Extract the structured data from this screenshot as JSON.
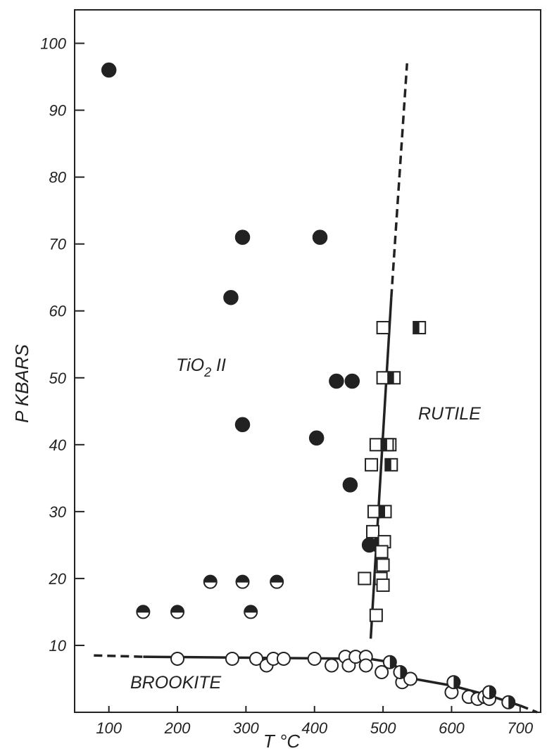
{
  "chart_data": {
    "type": "scatter",
    "xlabel": "T °C",
    "ylabel": "P KBARS",
    "xlim": [
      50,
      730
    ],
    "ylim": [
      0,
      105
    ],
    "xticks": [
      100,
      200,
      300,
      400,
      500,
      600,
      700
    ],
    "yticks": [
      10,
      20,
      30,
      40,
      50,
      60,
      70,
      80,
      90,
      100
    ],
    "regions": {
      "tio2": {
        "prefix": "TiO",
        "sub": "2",
        "suffix": " II"
      },
      "rutile": "RUTILE",
      "brookite": "BROOKITE"
    },
    "series": [
      {
        "marker": "filled-circle",
        "points": [
          [
            100,
            96
          ],
          [
            295,
            71
          ],
          [
            408,
            71
          ],
          [
            278,
            62
          ],
          [
            295,
            43
          ],
          [
            403,
            41
          ],
          [
            432,
            49.5
          ],
          [
            455,
            49.5
          ],
          [
            452,
            34
          ],
          [
            480,
            25
          ],
          [
            493,
            25
          ]
        ]
      },
      {
        "marker": "half-filled-circle-top",
        "points": [
          [
            248,
            19.5
          ],
          [
            295,
            19.5
          ],
          [
            345,
            19.5
          ],
          [
            150,
            15
          ],
          [
            200,
            15
          ],
          [
            307,
            15
          ]
        ]
      },
      {
        "marker": "open-square",
        "points": [
          [
            500,
            57.5
          ],
          [
            500,
            50
          ],
          [
            490,
            40
          ],
          [
            483,
            37
          ],
          [
            487,
            30
          ],
          [
            485,
            27
          ],
          [
            502,
            25.5
          ],
          [
            498,
            24
          ],
          [
            500,
            22
          ],
          [
            497,
            20
          ],
          [
            500,
            19
          ],
          [
            473,
            20
          ],
          [
            490,
            14.5
          ]
        ]
      },
      {
        "marker": "half-filled-square",
        "points": [
          [
            553,
            57.5
          ],
          [
            516,
            50
          ],
          [
            510,
            40
          ],
          [
            512,
            37
          ],
          [
            503,
            30
          ],
          [
            506,
            40
          ]
        ]
      },
      {
        "marker": "open-circle",
        "points": [
          [
            200,
            8
          ],
          [
            280,
            8
          ],
          [
            315,
            8
          ],
          [
            330,
            7
          ],
          [
            340,
            8
          ],
          [
            355,
            8
          ],
          [
            400,
            8
          ],
          [
            425,
            7
          ],
          [
            445,
            8.3
          ],
          [
            450,
            7
          ],
          [
            460,
            8.3
          ],
          [
            475,
            8.3
          ],
          [
            475,
            7
          ],
          [
            498,
            6
          ],
          [
            528,
            4.5
          ],
          [
            540,
            5
          ],
          [
            600,
            3
          ],
          [
            625,
            2.3
          ],
          [
            638,
            2
          ],
          [
            648,
            2.3
          ],
          [
            655,
            2
          ]
        ]
      },
      {
        "marker": "half-filled-circle-right",
        "points": [
          [
            510,
            7.5
          ],
          [
            525,
            6
          ],
          [
            603,
            4.5
          ],
          [
            655,
            3
          ],
          [
            683,
            1.5
          ]
        ]
      }
    ],
    "boundaries": [
      {
        "style": "solid",
        "points": [
          [
            482,
            11
          ],
          [
            512,
            62
          ]
        ]
      },
      {
        "style": "dashed",
        "points": [
          [
            512,
            62
          ],
          [
            535,
            97
          ]
        ]
      },
      {
        "style": "dashed",
        "points": [
          [
            78,
            8.5
          ],
          [
            150,
            8.3
          ]
        ]
      },
      {
        "style": "solid",
        "points": [
          [
            150,
            8.3
          ],
          [
            480,
            8.0
          ],
          [
            510,
            7.5
          ],
          [
            545,
            5.0
          ],
          [
            600,
            4.0
          ],
          [
            655,
            2.5
          ],
          [
            700,
            1
          ]
        ]
      },
      {
        "style": "dashed",
        "points": [
          [
            700,
            1
          ],
          [
            725,
            0
          ]
        ]
      }
    ]
  }
}
